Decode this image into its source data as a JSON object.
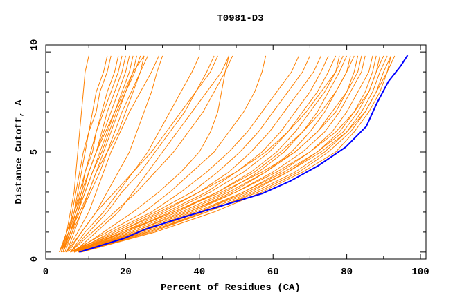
{
  "chart_data": {
    "type": "line",
    "title": "T0981-D3",
    "xlabel": "Percent of Residues (CA)",
    "ylabel": "Distance Cutoff, A",
    "xlim": [
      -1.7,
      101.5
    ],
    "ylim": [
      -0.35,
      10.35
    ],
    "xticks": [
      0,
      20,
      40,
      60,
      80,
      100
    ],
    "xtick_labels": [
      "0",
      "20",
      "40",
      "60",
      "80",
      "100"
    ],
    "yticks": [
      0,
      5,
      10
    ],
    "ytick_labels": [
      "0",
      "5",
      "10"
    ],
    "grid": false,
    "colors": {
      "highlight": "#0000ff",
      "others": "#ff8000"
    },
    "y_levels": [
      0,
      1,
      2,
      3,
      4,
      5,
      6,
      7,
      8,
      9,
      9.8
    ],
    "highlight_series": {
      "x": [
        7.4,
        19.6,
        25.3,
        36.5,
        47.8,
        57.1,
        64.7,
        72.2,
        79.7,
        85.3,
        88.1,
        91.3,
        94.7,
        96.5
      ],
      "y": [
        0,
        0.69,
        1.14,
        1.79,
        2.41,
        2.93,
        3.55,
        4.31,
        5.24,
        6.28,
        7.41,
        8.52,
        9.31,
        9.83
      ]
    },
    "other_series_x_at_levels": [
      [
        2.5,
        4,
        5,
        6,
        6.5,
        7,
        7.5,
        8,
        8.5,
        9,
        10
      ],
      [
        3,
        4.5,
        5.5,
        6.5,
        7.5,
        8.5,
        10,
        11,
        12,
        14,
        15
      ],
      [
        2,
        4,
        6,
        7,
        8,
        9,
        10,
        12,
        13,
        15,
        16
      ],
      [
        3,
        5,
        6.5,
        8,
        9,
        10.5,
        12,
        13.5,
        15,
        17,
        18
      ],
      [
        2.5,
        4.5,
        6,
        7.5,
        9,
        11,
        12,
        14,
        16,
        18,
        19
      ],
      [
        3,
        5,
        7,
        8.5,
        10,
        12,
        13.5,
        15,
        17,
        19,
        20
      ],
      [
        2,
        4,
        6,
        8,
        10,
        12,
        14,
        16,
        18,
        20,
        21
      ],
      [
        3.5,
        5.5,
        7,
        9,
        11,
        13,
        15,
        17,
        19,
        21,
        22
      ],
      [
        2.5,
        5,
        7,
        9,
        11,
        13.5,
        15.5,
        17.5,
        20,
        22,
        23
      ],
      [
        3,
        5,
        7.5,
        10,
        12,
        14,
        16,
        18,
        20,
        22.5,
        24
      ],
      [
        2,
        4.5,
        6.5,
        8.5,
        10,
        12,
        14.5,
        17,
        19.5,
        22,
        25
      ],
      [
        3,
        5.5,
        8,
        10.5,
        13,
        15,
        18,
        20,
        22,
        24,
        26
      ],
      [
        4,
        6,
        8,
        10,
        12,
        15,
        17,
        19,
        21.5,
        24,
        25
      ],
      [
        4,
        7,
        10,
        12,
        14,
        16,
        18.5,
        21,
        24,
        27,
        29
      ],
      [
        4.5,
        8,
        12,
        15,
        18,
        21,
        23,
        25,
        27,
        28.5,
        30
      ],
      [
        5,
        9,
        14,
        18,
        22,
        26,
        29,
        32,
        35,
        38,
        40
      ],
      [
        5,
        10,
        15,
        19,
        24,
        28,
        32,
        36,
        39,
        42,
        44
      ],
      [
        4,
        8,
        12,
        17,
        22,
        27,
        31,
        35,
        39,
        43,
        45
      ],
      [
        6,
        12,
        18,
        22,
        26,
        30,
        34,
        38,
        42,
        46,
        48
      ],
      [
        5,
        11,
        17,
        23,
        28,
        33,
        37,
        41,
        44,
        47,
        48
      ],
      [
        6,
        14,
        22,
        29,
        35,
        40,
        43,
        45,
        46,
        47,
        49
      ],
      [
        5,
        15,
        25,
        32,
        38,
        44,
        48,
        52,
        55,
        57,
        58
      ],
      [
        6,
        16,
        27,
        35,
        42,
        48,
        53,
        57,
        61,
        65,
        67
      ],
      [
        5,
        17,
        28,
        38,
        45,
        51,
        56,
        60,
        64,
        68,
        70
      ],
      [
        6,
        18,
        30,
        40,
        48,
        54,
        59,
        63,
        67,
        71,
        73
      ],
      [
        7,
        19,
        31,
        42,
        50,
        57,
        62,
        66,
        70,
        73,
        75
      ],
      [
        5,
        20,
        32,
        43,
        52,
        59,
        64,
        68,
        72,
        75,
        77
      ],
      [
        6,
        21,
        34,
        45,
        54,
        61,
        66,
        70,
        74,
        77,
        78
      ],
      [
        7,
        22,
        35,
        47,
        56,
        63,
        68,
        72,
        75,
        78,
        80
      ],
      [
        6,
        20,
        33,
        45,
        55,
        62,
        68,
        73,
        77,
        80,
        81
      ],
      [
        7,
        23,
        37,
        49,
        58,
        65,
        70,
        74,
        77,
        80,
        82
      ],
      [
        6,
        22,
        36,
        48,
        58,
        66,
        72,
        76,
        80,
        83,
        84
      ],
      [
        7,
        24,
        38,
        50,
        60,
        68,
        74,
        78,
        81,
        84,
        85
      ],
      [
        8,
        25,
        40,
        52,
        62,
        70,
        76,
        80,
        83,
        86,
        87
      ],
      [
        7,
        23,
        37,
        50,
        61,
        70,
        77,
        82,
        85,
        87,
        88
      ],
      [
        8,
        26,
        41,
        54,
        64,
        72,
        78,
        82,
        86,
        88,
        89
      ],
      [
        6,
        24,
        39,
        52,
        63,
        72,
        79,
        83,
        86,
        88,
        90
      ],
      [
        8,
        27,
        42,
        55,
        66,
        74,
        80,
        84,
        87,
        89,
        91
      ],
      [
        7,
        25,
        40,
        53,
        64,
        73,
        80,
        85,
        88,
        90,
        92
      ],
      [
        8,
        28,
        44,
        57,
        68,
        77,
        82,
        86,
        89,
        91,
        92
      ],
      [
        7,
        26,
        42,
        56,
        67,
        75,
        81,
        85,
        88,
        91,
        93
      ],
      [
        5,
        18,
        29,
        40,
        50,
        58,
        64,
        69,
        73,
        77,
        79
      ],
      [
        6,
        19,
        33,
        46,
        57,
        66,
        72,
        77,
        80,
        82,
        83
      ]
    ]
  }
}
